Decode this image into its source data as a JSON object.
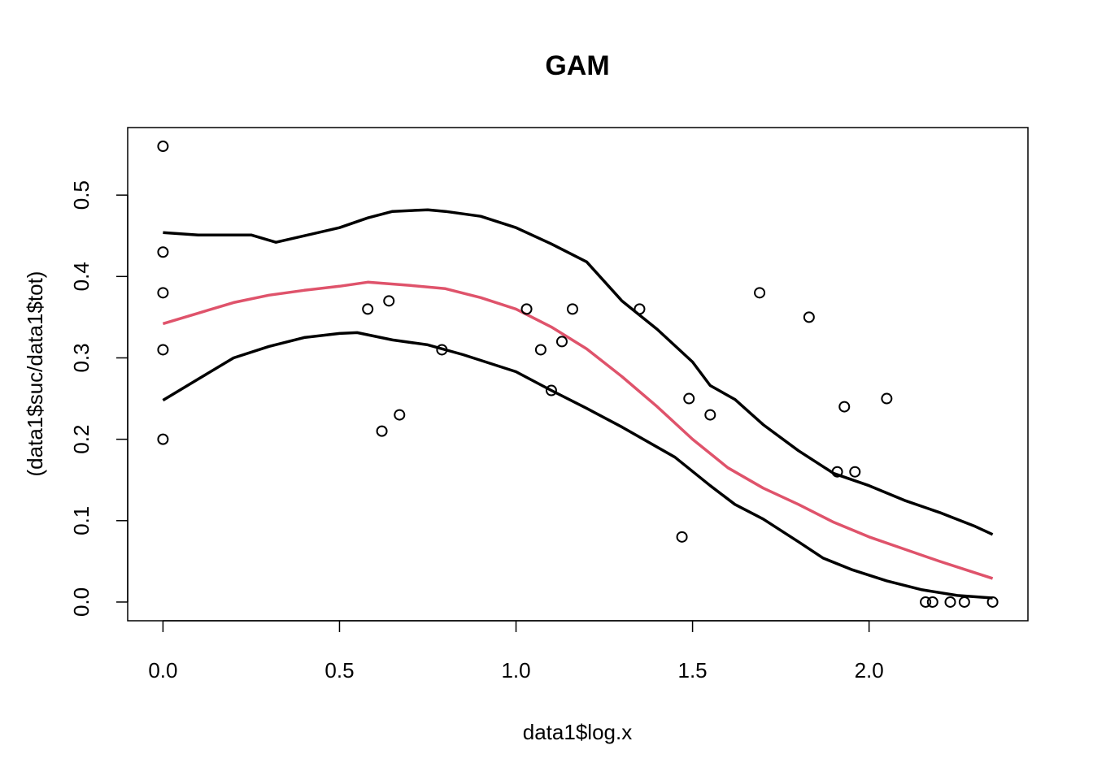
{
  "chart_data": {
    "type": "scatter",
    "title": "GAM",
    "xlabel": "data1$log.x",
    "ylabel": "(data1$suc/data1$tot)",
    "xlim": [
      -0.1,
      2.45
    ],
    "ylim": [
      -0.023,
      0.583
    ],
    "xticks": [
      0.0,
      0.5,
      1.0,
      1.5,
      2.0
    ],
    "xtick_labels": [
      "0.0",
      "0.5",
      "1.0",
      "1.5",
      "2.0"
    ],
    "yticks": [
      0.0,
      0.1,
      0.2,
      0.3,
      0.4,
      0.5
    ],
    "ytick_labels": [
      "0.0",
      "0.1",
      "0.2",
      "0.3",
      "0.4",
      "0.5"
    ],
    "grid": false,
    "points": {
      "x": [
        0,
        0,
        0,
        0,
        0,
        0.58,
        0.62,
        0.64,
        0.67,
        0.79,
        1.03,
        1.07,
        1.1,
        1.13,
        1.16,
        1.35,
        1.47,
        1.49,
        1.55,
        1.69,
        1.83,
        1.91,
        1.93,
        1.96,
        2.05,
        2.16,
        2.18,
        2.23,
        2.27,
        2.35
      ],
      "y": [
        0.56,
        0.43,
        0.38,
        0.31,
        0.2,
        0.36,
        0.21,
        0.37,
        0.23,
        0.31,
        0.36,
        0.31,
        0.26,
        0.32,
        0.36,
        0.36,
        0.08,
        0.25,
        0.23,
        0.38,
        0.35,
        0.16,
        0.24,
        0.16,
        0.25,
        0.0,
        0.0,
        0.0,
        0.0,
        0.0
      ]
    },
    "series": [
      {
        "role": "fit",
        "color": "#DF536B",
        "x": [
          0,
          0.1,
          0.2,
          0.3,
          0.4,
          0.5,
          0.58,
          0.7,
          0.8,
          0.9,
          1.0,
          1.1,
          1.2,
          1.3,
          1.4,
          1.5,
          1.6,
          1.7,
          1.8,
          1.9,
          2.0,
          2.1,
          2.2,
          2.3,
          2.35
        ],
        "y": [
          0.342,
          0.355,
          0.368,
          0.377,
          0.383,
          0.388,
          0.393,
          0.389,
          0.385,
          0.374,
          0.36,
          0.338,
          0.311,
          0.277,
          0.24,
          0.2,
          0.165,
          0.14,
          0.12,
          0.098,
          0.08,
          0.065,
          0.05,
          0.036,
          0.029
        ]
      },
      {
        "role": "upper-band",
        "color": "#000000",
        "x": [
          0,
          0.1,
          0.25,
          0.32,
          0.4,
          0.5,
          0.58,
          0.65,
          0.75,
          0.8,
          0.9,
          1.0,
          1.1,
          1.2,
          1.3,
          1.4,
          1.5,
          1.55,
          1.62,
          1.7,
          1.8,
          1.9,
          2.0,
          2.1,
          2.2,
          2.3,
          2.35
        ],
        "y": [
          0.454,
          0.451,
          0.451,
          0.442,
          0.45,
          0.46,
          0.472,
          0.48,
          0.482,
          0.48,
          0.474,
          0.46,
          0.44,
          0.418,
          0.37,
          0.335,
          0.295,
          0.266,
          0.249,
          0.218,
          0.186,
          0.158,
          0.143,
          0.125,
          0.11,
          0.093,
          0.083
        ]
      },
      {
        "role": "lower-band",
        "color": "#000000",
        "x": [
          0,
          0.1,
          0.2,
          0.3,
          0.4,
          0.5,
          0.55,
          0.65,
          0.75,
          0.85,
          1.0,
          1.1,
          1.2,
          1.3,
          1.45,
          1.55,
          1.62,
          1.7,
          1.8,
          1.87,
          1.95,
          2.05,
          2.15,
          2.25,
          2.35
        ],
        "y": [
          0.248,
          0.274,
          0.3,
          0.314,
          0.325,
          0.33,
          0.331,
          0.322,
          0.316,
          0.304,
          0.283,
          0.26,
          0.238,
          0.215,
          0.178,
          0.143,
          0.12,
          0.102,
          0.074,
          0.054,
          0.04,
          0.026,
          0.015,
          0.008,
          0.005
        ]
      }
    ]
  }
}
